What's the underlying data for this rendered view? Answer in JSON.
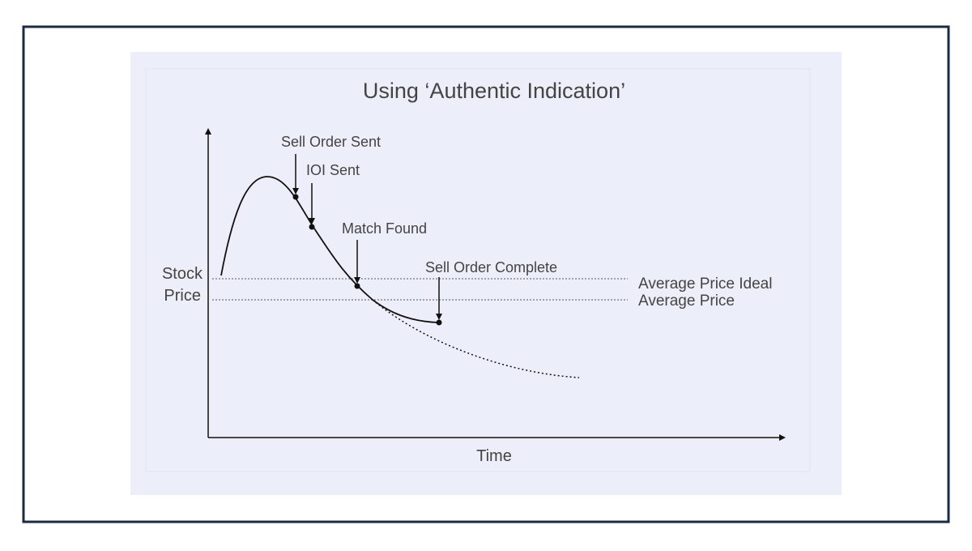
{
  "title": "Using ‘Authentic Indication’",
  "y_axis_label": [
    "Stock",
    "Price"
  ],
  "x_axis_label": "Time",
  "annotations": [
    "Sell Order Sent",
    "IOI Sent",
    "Match Found",
    "Sell Order Complete"
  ],
  "reference_lines": [
    "Average Price Ideal",
    "Average Price"
  ]
}
